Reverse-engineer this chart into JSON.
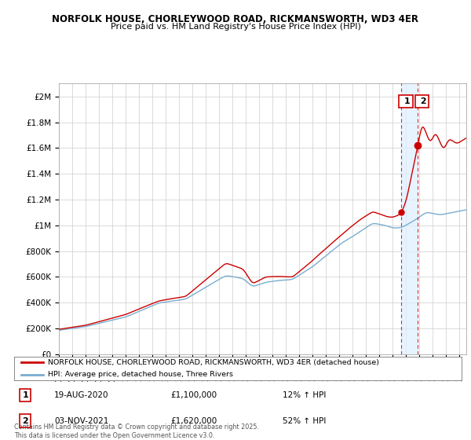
{
  "title": "NORFOLK HOUSE, CHORLEYWOOD ROAD, RICKMANSWORTH, WD3 4ER",
  "subtitle": "Price paid vs. HM Land Registry's House Price Index (HPI)",
  "ylabel_ticks": [
    "£0",
    "£200K",
    "£400K",
    "£600K",
    "£800K",
    "£1M",
    "£1.2M",
    "£1.4M",
    "£1.6M",
    "£1.8M",
    "£2M"
  ],
  "ytick_vals": [
    0,
    200000,
    400000,
    600000,
    800000,
    1000000,
    1200000,
    1400000,
    1600000,
    1800000,
    2000000
  ],
  "ylim": [
    0,
    2100000
  ],
  "xlim_start": 1995.0,
  "xlim_end": 2025.5,
  "legend_line1": "NORFOLK HOUSE, CHORLEYWOOD ROAD, RICKMANSWORTH, WD3 4ER (detached house)",
  "legend_line2": "HPI: Average price, detached house, Three Rivers",
  "annotation1_label": "1",
  "annotation1_date": "19-AUG-2020",
  "annotation1_price": "£1,100,000",
  "annotation1_hpi": "12% ↑ HPI",
  "annotation2_label": "2",
  "annotation2_date": "03-NOV-2021",
  "annotation2_price": "£1,620,000",
  "annotation2_hpi": "52% ↑ HPI",
  "footer": "Contains HM Land Registry data © Crown copyright and database right 2025.\nThis data is licensed under the Open Government Licence v3.0.",
  "price_color": "#cc0000",
  "hpi_color": "#7aadcf",
  "hpi_band_color": "#ddeeff",
  "bg_color": "#ffffff",
  "grid_color": "#cccccc",
  "sale1_x": 2020.63,
  "sale1_y": 1100000,
  "sale2_x": 2021.84,
  "sale2_y": 1620000
}
